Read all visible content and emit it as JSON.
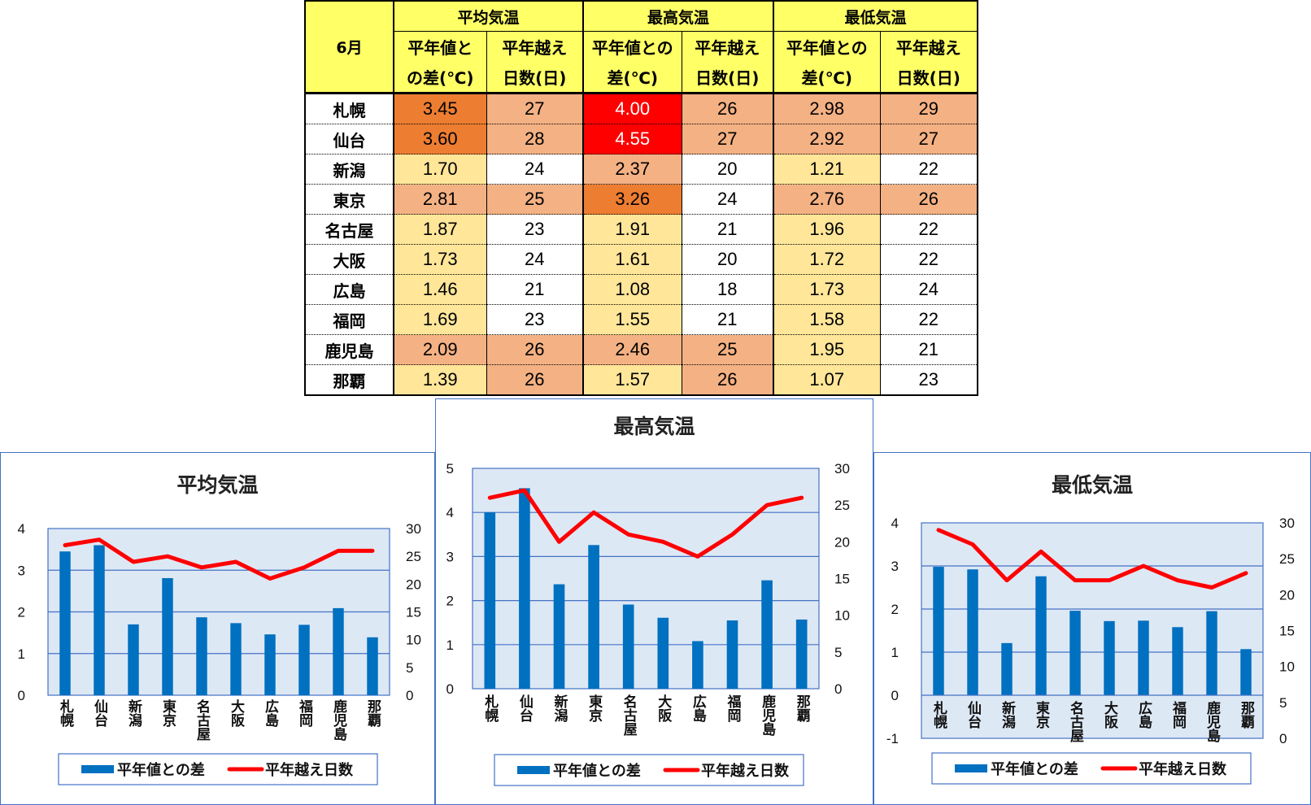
{
  "table": {
    "month": "6月",
    "group_headers": [
      "平均気温",
      "最高気温",
      "最低気温"
    ],
    "sub_headers": [
      [
        "平年値と",
        "の差(℃)"
      ],
      [
        "平年越え",
        "日数(日)"
      ],
      [
        "平年値との",
        "差(℃)"
      ],
      [
        "平年越え",
        "日数(日)"
      ],
      [
        "平年値との",
        "差(℃)"
      ],
      [
        "平年越え",
        "日数(日)"
      ]
    ],
    "rows": [
      {
        "city": "札幌",
        "cells": [
          "3.45",
          "27",
          "4.00",
          "26",
          "2.98",
          "29"
        ]
      },
      {
        "city": "仙台",
        "cells": [
          "3.60",
          "28",
          "4.55",
          "27",
          "2.92",
          "27"
        ]
      },
      {
        "city": "新潟",
        "cells": [
          "1.70",
          "24",
          "2.37",
          "20",
          "1.21",
          "22"
        ]
      },
      {
        "city": "東京",
        "cells": [
          "2.81",
          "25",
          "3.26",
          "24",
          "2.76",
          "26"
        ]
      },
      {
        "city": "名古屋",
        "cells": [
          "1.87",
          "23",
          "1.91",
          "21",
          "1.96",
          "22"
        ]
      },
      {
        "city": "大阪",
        "cells": [
          "1.73",
          "24",
          "1.61",
          "20",
          "1.72",
          "22"
        ]
      },
      {
        "city": "広島",
        "cells": [
          "1.46",
          "21",
          "1.08",
          "18",
          "1.73",
          "24"
        ]
      },
      {
        "city": "福岡",
        "cells": [
          "1.69",
          "23",
          "1.55",
          "21",
          "1.58",
          "22"
        ]
      },
      {
        "city": "鹿児島",
        "cells": [
          "2.09",
          "26",
          "2.46",
          "25",
          "1.95",
          "21"
        ]
      },
      {
        "city": "那覇",
        "cells": [
          "1.39",
          "26",
          "1.57",
          "26",
          "1.07",
          "23"
        ]
      }
    ],
    "cell_colors": [
      [
        "#ed7d31",
        "#f4b183",
        "#ff0000",
        "#f4b183",
        "#f4b183",
        "#f4b183"
      ],
      [
        "#ed7d31",
        "#f4b183",
        "#ff0000",
        "#f4b183",
        "#f4b183",
        "#f4b183"
      ],
      [
        "#ffe699",
        "#ffffff",
        "#f4b183",
        "#ffffff",
        "#ffe699",
        "#ffffff"
      ],
      [
        "#f4b183",
        "#f4b183",
        "#ed7d31",
        "#ffffff",
        "#f4b183",
        "#f4b183"
      ],
      [
        "#ffe699",
        "#ffffff",
        "#ffe699",
        "#ffffff",
        "#ffe699",
        "#ffffff"
      ],
      [
        "#ffe699",
        "#ffffff",
        "#ffe699",
        "#ffffff",
        "#ffe699",
        "#ffffff"
      ],
      [
        "#ffe699",
        "#ffffff",
        "#ffe699",
        "#ffffff",
        "#ffe699",
        "#ffffff"
      ],
      [
        "#ffe699",
        "#ffffff",
        "#ffe699",
        "#ffffff",
        "#ffe699",
        "#ffffff"
      ],
      [
        "#f4b183",
        "#f4b183",
        "#f4b183",
        "#f4b183",
        "#ffe699",
        "#ffffff"
      ],
      [
        "#ffe699",
        "#f4b183",
        "#ffe699",
        "#f4b183",
        "#ffe699",
        "#ffffff"
      ]
    ],
    "header_color": "#ffff66"
  },
  "legend": {
    "bar": "平年値との差",
    "line": "平年越え日数"
  },
  "colors": {
    "bar": "#0070c0",
    "line": "#ff0000",
    "plot_bg": "#dde8f5",
    "grid": "#4472c4",
    "frame": "#4472c4"
  },
  "chart_data": [
    {
      "type": "bar",
      "title": "平均気温",
      "categories": [
        "札幌",
        "仙台",
        "新潟",
        "東京",
        "名古屋",
        "大阪",
        "広島",
        "福岡",
        "鹿児島",
        "那覇"
      ],
      "series": [
        {
          "name": "平年値との差",
          "type": "bar",
          "axis": "left",
          "values": [
            3.45,
            3.6,
            1.7,
            2.81,
            1.87,
            1.73,
            1.46,
            1.69,
            2.09,
            1.39
          ]
        },
        {
          "name": "平年越え日数",
          "type": "line",
          "axis": "right",
          "values": [
            27,
            28,
            24,
            25,
            23,
            24,
            21,
            23,
            26,
            26
          ]
        }
      ],
      "ylim": [
        0,
        4
      ],
      "yticks": [
        "0",
        "1",
        "2",
        "3",
        "4"
      ],
      "y2lim": [
        0,
        30
      ],
      "y2ticks": [
        "0",
        "5",
        "10",
        "15",
        "20",
        "25",
        "30"
      ],
      "legend_position": "bottom",
      "grid": true
    },
    {
      "type": "bar",
      "title": "最高気温",
      "categories": [
        "札幌",
        "仙台",
        "新潟",
        "東京",
        "名古屋",
        "大阪",
        "広島",
        "福岡",
        "鹿児島",
        "那覇"
      ],
      "series": [
        {
          "name": "平年値との差",
          "type": "bar",
          "axis": "left",
          "values": [
            4.0,
            4.55,
            2.37,
            3.26,
            1.91,
            1.61,
            1.08,
            1.55,
            2.46,
            1.57
          ]
        },
        {
          "name": "平年越え日数",
          "type": "line",
          "axis": "right",
          "values": [
            26,
            27,
            20,
            24,
            21,
            20,
            18,
            21,
            25,
            26
          ]
        }
      ],
      "ylim": [
        0,
        5
      ],
      "yticks": [
        "0",
        "1",
        "2",
        "3",
        "4",
        "5"
      ],
      "y2lim": [
        0,
        30
      ],
      "y2ticks": [
        "0",
        "5",
        "10",
        "15",
        "20",
        "25",
        "30"
      ],
      "legend_position": "bottom",
      "grid": true
    },
    {
      "type": "bar",
      "title": "最低気温",
      "categories": [
        "札幌",
        "仙台",
        "新潟",
        "東京",
        "名古屋",
        "大阪",
        "広島",
        "福岡",
        "鹿児島",
        "那覇"
      ],
      "series": [
        {
          "name": "平年値との差",
          "type": "bar",
          "axis": "left",
          "values": [
            2.98,
            2.92,
            1.21,
            2.76,
            1.96,
            1.72,
            1.73,
            1.58,
            1.95,
            1.07
          ]
        },
        {
          "name": "平年越え日数",
          "type": "line",
          "axis": "right",
          "values": [
            29,
            27,
            22,
            26,
            22,
            22,
            24,
            22,
            21,
            23
          ]
        }
      ],
      "ylim": [
        -1,
        4
      ],
      "yticks": [
        "-1",
        "0",
        "1",
        "2",
        "3",
        "4"
      ],
      "y2lim": [
        0,
        30
      ],
      "y2ticks": [
        "0",
        "5",
        "10",
        "15",
        "20",
        "25",
        "30"
      ],
      "legend_position": "bottom",
      "grid": true
    }
  ]
}
